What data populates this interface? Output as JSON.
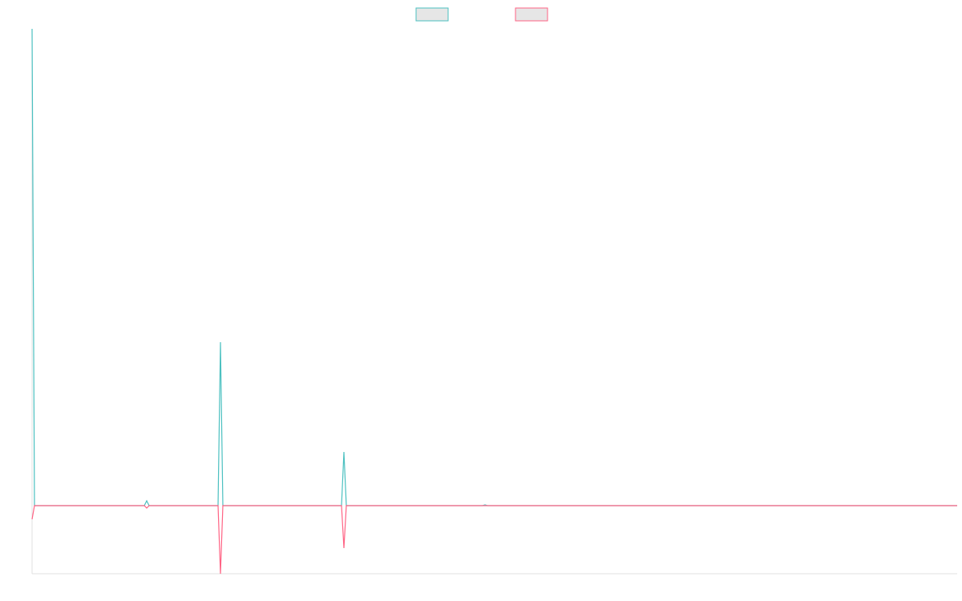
{
  "chart_data": {
    "type": "line",
    "x": [
      0,
      3,
      90,
      140,
      143,
      146,
      232,
      235,
      238,
      386,
      389,
      392,
      515,
      562,
      565,
      568,
      1154
    ],
    "series": [
      {
        "color": "#4bc0c0",
        "values": [
          595,
          0,
          0,
          0,
          6,
          0,
          0,
          204,
          0,
          0,
          67,
          0,
          0,
          0,
          1,
          0,
          0
        ]
      },
      {
        "color": "#ff6384",
        "values": [
          -17,
          0,
          0,
          0,
          -3,
          0,
          0,
          -85,
          0,
          0,
          -53,
          0,
          0,
          0,
          0,
          0,
          0
        ]
      }
    ],
    "xlim": [
      0,
      1154
    ],
    "ylim": [
      -85,
      595
    ],
    "legend": "top",
    "legend_fill": "#e6e6e6"
  }
}
